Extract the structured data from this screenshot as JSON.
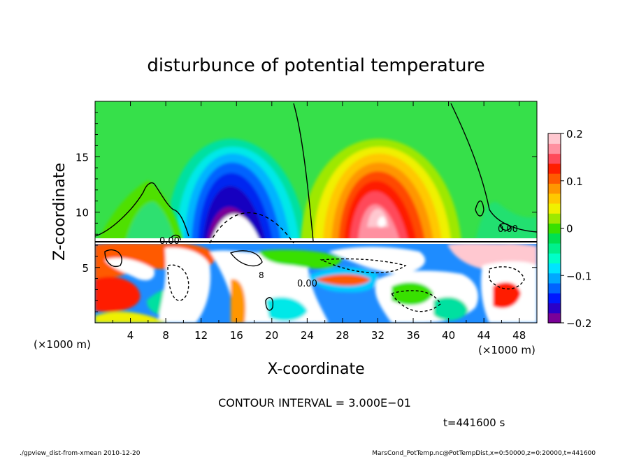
{
  "chart_data": {
    "type": "heatmap",
    "title": "disturbunce of potential temperature",
    "xlabel": "X-coordinate",
    "ylabel": "Z-coordinate",
    "x_unit_label": "(×1000 m)",
    "y_unit_label": "(×1000 m)",
    "xlim": [
      0,
      50
    ],
    "ylim": [
      0,
      20
    ],
    "x_ticks": [
      4,
      8,
      12,
      16,
      20,
      24,
      28,
      32,
      36,
      40,
      44,
      48
    ],
    "y_ticks": [
      5,
      10,
      15
    ],
    "colorbar": {
      "range": [
        -0.2,
        0.2
      ],
      "tick_values": [
        0.2,
        0.1,
        0,
        -0.1,
        -0.2
      ],
      "tick_labels": [
        "0.2",
        "0.1",
        "0",
        "−0.1",
        "−0.2"
      ],
      "colors": [
        "#7a0098",
        "#2a00c8",
        "#0018ff",
        "#0064ff",
        "#00a8ff",
        "#00e4ff",
        "#00ffc8",
        "#00f08c",
        "#00e050",
        "#38e000",
        "#9ee800",
        "#f0f000",
        "#ffc800",
        "#ff9600",
        "#ff5a00",
        "#ff1e00",
        "#ff4a5a",
        "#ff90a0",
        "#ffc8d0"
      ]
    },
    "features": [
      {
        "kind": "cold_anomaly",
        "x_center": 17.5,
        "z_center": 10.5,
        "x_halfwidth": 7,
        "z_top": 18.5,
        "min_value": -0.2
      },
      {
        "kind": "warm_anomaly",
        "x_center": 32.5,
        "z_center": 10.5,
        "x_halfwidth": 7,
        "z_top": 18.5,
        "max_value": 0.2
      }
    ],
    "contour_labels": [
      "0.00",
      "0.00",
      "0.00",
      "8"
    ],
    "contour_interval_text": "CONTOUR INTERVAL = 3.000E−01",
    "time_text": "t=441600 s"
  },
  "footer": {
    "left": "./gpview_dist-from-xmean  2010-12-20",
    "right": "MarsCond_PotTemp.nc@PotTempDist,x=0:50000,z=0:20000,t=441600"
  }
}
